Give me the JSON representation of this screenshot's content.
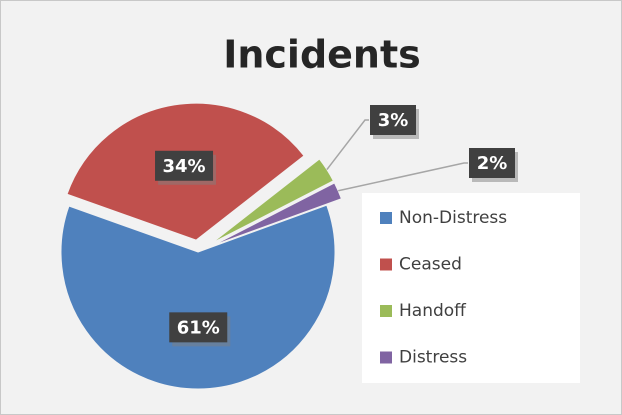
{
  "chart_data": {
    "type": "pie",
    "title": "Incidents",
    "categories": [
      "Non-Distress",
      "Ceased",
      "Handoff",
      "Distress"
    ],
    "values": [
      61,
      34,
      3,
      2
    ],
    "value_labels": [
      "61%",
      "34%",
      "3%",
      "2%"
    ],
    "colors": [
      "#4f81bd",
      "#c0504d",
      "#9bbb59",
      "#8064a2"
    ],
    "legend": "right"
  }
}
